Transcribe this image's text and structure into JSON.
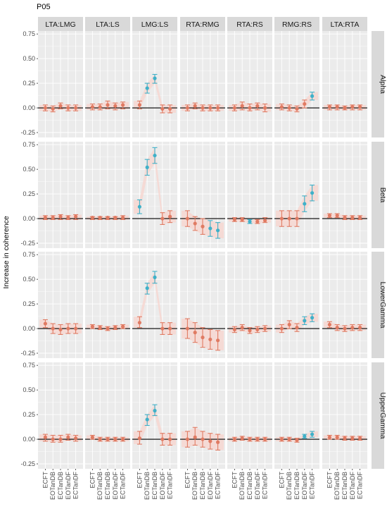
{
  "chart_data": {
    "type": "scatter",
    "title": "P05",
    "ylabel": "Increase in coherence",
    "xlabel": "",
    "ylim": [
      -0.3,
      0.78
    ],
    "y_ticks": [
      -0.25,
      0,
      0.25,
      0.5,
      0.75
    ],
    "y_tick_labels": [
      "-0.25",
      "0.00",
      "0.25",
      "0.50",
      "0.75"
    ],
    "column_facets": [
      "LTA:LMG",
      "LTA:LS",
      "LMG:LS",
      "RTA:RMG",
      "RTA:RS",
      "RMG:RS",
      "LTA:RTA"
    ],
    "row_facets": [
      "Alpha",
      "Beta",
      "LowerGamma",
      "UpperGamma"
    ],
    "categories": [
      "ECFT",
      "EOTanDB",
      "ECTanDB",
      "EOTanDF",
      "ECTanDF"
    ],
    "colors": {
      "significant": "#3fb1c9",
      "nonsignificant": "#e07b63",
      "band": "#f7d7d1",
      "panel": "#ebebeb",
      "strip": "#d9d9d9",
      "grid": "#ffffff"
    },
    "panels": {
      "Alpha": {
        "LTA:LMG": [
          [
            0.0,
            -0.03,
            0.03,
            0
          ],
          [
            -0.01,
            -0.04,
            0.02,
            0
          ],
          [
            0.02,
            -0.01,
            0.05,
            0
          ],
          [
            0.0,
            -0.03,
            0.03,
            0
          ],
          [
            0.0,
            -0.03,
            0.03,
            0
          ]
        ],
        "LTA:LS": [
          [
            0.01,
            -0.02,
            0.04,
            0
          ],
          [
            0.01,
            -0.02,
            0.04,
            0
          ],
          [
            0.03,
            -0.01,
            0.07,
            0
          ],
          [
            0.02,
            -0.02,
            0.05,
            0
          ],
          [
            0.03,
            -0.01,
            0.06,
            0
          ]
        ],
        "LMG:LS": [
          [
            0.03,
            -0.01,
            0.07,
            0
          ],
          [
            0.2,
            0.15,
            0.25,
            1
          ],
          [
            0.3,
            0.25,
            0.34,
            1
          ],
          [
            -0.01,
            -0.05,
            0.03,
            0
          ],
          [
            -0.01,
            -0.05,
            0.03,
            0
          ]
        ],
        "RTA:RMG": [
          [
            0.0,
            -0.03,
            0.03,
            0
          ],
          [
            0.02,
            -0.01,
            0.05,
            0
          ],
          [
            0.0,
            -0.03,
            0.03,
            0
          ],
          [
            0.0,
            -0.03,
            0.03,
            0
          ],
          [
            0.0,
            -0.03,
            0.03,
            0
          ]
        ],
        "RTA:RS": [
          [
            0.0,
            -0.03,
            0.03,
            0
          ],
          [
            0.02,
            -0.02,
            0.06,
            0
          ],
          [
            0.0,
            -0.03,
            0.04,
            0
          ],
          [
            0.02,
            -0.02,
            0.05,
            0
          ],
          [
            0.0,
            -0.04,
            0.04,
            0
          ]
        ],
        "RMG:RS": [
          [
            0.01,
            -0.02,
            0.04,
            0
          ],
          [
            0.0,
            -0.03,
            0.03,
            0
          ],
          [
            -0.01,
            -0.04,
            0.02,
            0
          ],
          [
            0.04,
            0.0,
            0.08,
            0
          ],
          [
            0.12,
            0.08,
            0.16,
            1
          ]
        ],
        "LTA:RTA": [
          [
            0.01,
            -0.02,
            0.03,
            0
          ],
          [
            0.01,
            -0.02,
            0.03,
            0
          ],
          [
            0.0,
            -0.02,
            0.02,
            0
          ],
          [
            0.01,
            -0.02,
            0.03,
            0
          ],
          [
            0.01,
            -0.02,
            0.03,
            0
          ]
        ]
      },
      "Beta": {
        "LTA:LMG": [
          [
            0.01,
            -0.01,
            0.03,
            0
          ],
          [
            0.01,
            -0.01,
            0.03,
            0
          ],
          [
            0.02,
            -0.01,
            0.04,
            0
          ],
          [
            0.01,
            -0.01,
            0.03,
            0
          ],
          [
            0.02,
            -0.01,
            0.04,
            0
          ]
        ],
        "LTA:LS": [
          [
            0.01,
            -0.01,
            0.02,
            0
          ],
          [
            0.01,
            -0.01,
            0.02,
            0
          ],
          [
            0.01,
            -0.01,
            0.02,
            0
          ],
          [
            0.01,
            -0.01,
            0.02,
            0
          ],
          [
            0.01,
            -0.01,
            0.03,
            0
          ]
        ],
        "LMG:LS": [
          [
            0.12,
            0.05,
            0.19,
            1
          ],
          [
            0.52,
            0.44,
            0.6,
            1
          ],
          [
            0.64,
            0.56,
            0.72,
            1
          ],
          [
            0.0,
            -0.06,
            0.06,
            0
          ],
          [
            0.02,
            -0.04,
            0.08,
            0
          ]
        ],
        "RTA:RMG": [
          [
            0.0,
            -0.08,
            0.08,
            0
          ],
          [
            -0.05,
            -0.12,
            0.02,
            0
          ],
          [
            -0.08,
            -0.16,
            0.0,
            0
          ],
          [
            -0.1,
            -0.18,
            -0.02,
            1
          ],
          [
            -0.12,
            -0.2,
            -0.04,
            1
          ]
        ],
        "RTA:RS": [
          [
            -0.01,
            -0.03,
            0.01,
            0
          ],
          [
            -0.01,
            -0.03,
            0.01,
            0
          ],
          [
            -0.03,
            -0.05,
            -0.01,
            1
          ],
          [
            -0.03,
            -0.05,
            -0.01,
            0
          ],
          [
            -0.02,
            -0.04,
            0.01,
            0
          ]
        ],
        "RMG:RS": [
          [
            0.0,
            -0.08,
            0.08,
            0
          ],
          [
            0.0,
            -0.08,
            0.08,
            0
          ],
          [
            0.0,
            -0.08,
            0.08,
            0
          ],
          [
            0.15,
            0.07,
            0.23,
            1
          ],
          [
            0.26,
            0.18,
            0.34,
            1
          ]
        ],
        "LTA:RTA": [
          [
            0.03,
            0.01,
            0.05,
            0
          ],
          [
            0.03,
            0.01,
            0.05,
            0
          ],
          [
            0.01,
            -0.01,
            0.03,
            0
          ],
          [
            0.01,
            -0.01,
            0.03,
            0
          ],
          [
            0.01,
            -0.01,
            0.03,
            0
          ]
        ]
      },
      "LowerGamma": {
        "LTA:LMG": [
          [
            0.05,
            0.01,
            0.09,
            0
          ],
          [
            0.0,
            -0.05,
            0.05,
            0
          ],
          [
            -0.01,
            -0.06,
            0.04,
            0
          ],
          [
            0.0,
            -0.05,
            0.05,
            0
          ],
          [
            0.0,
            -0.05,
            0.05,
            0
          ]
        ],
        "LTA:LS": [
          [
            0.02,
            0.0,
            0.04,
            0
          ],
          [
            0.01,
            -0.01,
            0.03,
            0
          ],
          [
            0.0,
            -0.02,
            0.02,
            0
          ],
          [
            0.01,
            -0.01,
            0.03,
            0
          ],
          [
            0.02,
            0.0,
            0.04,
            0
          ]
        ],
        "LMG:LS": [
          [
            0.06,
            0.01,
            0.12,
            0
          ],
          [
            0.41,
            0.35,
            0.46,
            1
          ],
          [
            0.52,
            0.46,
            0.58,
            1
          ],
          [
            0.0,
            -0.06,
            0.06,
            0
          ],
          [
            0.0,
            -0.06,
            0.06,
            0
          ]
        ],
        "RTA:RMG": [
          [
            0.0,
            -0.1,
            0.1,
            0
          ],
          [
            -0.04,
            -0.14,
            0.06,
            0
          ],
          [
            -0.09,
            -0.19,
            0.01,
            0
          ],
          [
            -0.11,
            -0.21,
            -0.01,
            0
          ],
          [
            -0.12,
            -0.22,
            -0.02,
            0
          ]
        ],
        "RTA:RS": [
          [
            -0.01,
            -0.04,
            0.02,
            0
          ],
          [
            0.01,
            -0.02,
            0.04,
            0
          ],
          [
            -0.02,
            -0.05,
            0.01,
            0
          ],
          [
            -0.01,
            -0.04,
            0.02,
            0
          ],
          [
            0.0,
            -0.03,
            0.03,
            0
          ]
        ],
        "RMG:RS": [
          [
            0.0,
            -0.04,
            0.04,
            0
          ],
          [
            0.04,
            0.0,
            0.08,
            0
          ],
          [
            0.01,
            -0.03,
            0.05,
            0
          ],
          [
            0.08,
            0.04,
            0.12,
            1
          ],
          [
            0.11,
            0.07,
            0.15,
            1
          ]
        ],
        "LTA:RTA": [
          [
            0.04,
            0.01,
            0.07,
            0
          ],
          [
            0.01,
            -0.02,
            0.04,
            0
          ],
          [
            0.0,
            -0.03,
            0.03,
            0
          ],
          [
            0.01,
            -0.02,
            0.04,
            0
          ],
          [
            0.01,
            -0.02,
            0.04,
            0
          ]
        ]
      },
      "UpperGamma": {
        "LTA:LMG": [
          [
            0.02,
            -0.02,
            0.05,
            0
          ],
          [
            0.0,
            -0.03,
            0.04,
            0
          ],
          [
            0.0,
            -0.03,
            0.04,
            0
          ],
          [
            0.02,
            -0.01,
            0.05,
            0
          ],
          [
            0.01,
            -0.02,
            0.04,
            0
          ]
        ],
        "LTA:LS": [
          [
            0.02,
            0.0,
            0.04,
            0
          ],
          [
            0.0,
            -0.02,
            0.02,
            0
          ],
          [
            0.0,
            -0.02,
            0.02,
            0
          ],
          [
            0.0,
            -0.02,
            0.02,
            0
          ],
          [
            0.0,
            -0.02,
            0.02,
            0
          ]
        ],
        "LMG:LS": [
          [
            0.01,
            -0.05,
            0.08,
            0
          ],
          [
            0.2,
            0.14,
            0.25,
            1
          ],
          [
            0.29,
            0.24,
            0.35,
            1
          ],
          [
            0.0,
            -0.06,
            0.06,
            0
          ],
          [
            0.0,
            -0.06,
            0.06,
            0
          ]
        ],
        "RTA:RMG": [
          [
            0.0,
            -0.08,
            0.08,
            0
          ],
          [
            0.02,
            -0.06,
            0.12,
            0
          ],
          [
            0.0,
            -0.08,
            0.08,
            0
          ],
          [
            -0.02,
            -0.1,
            0.06,
            0
          ],
          [
            -0.03,
            -0.11,
            0.05,
            0
          ]
        ],
        "RTA:RS": [
          [
            0.0,
            -0.02,
            0.02,
            0
          ],
          [
            0.01,
            -0.01,
            0.03,
            0
          ],
          [
            0.0,
            -0.02,
            0.02,
            0
          ],
          [
            0.0,
            -0.02,
            0.02,
            0
          ],
          [
            0.0,
            -0.02,
            0.02,
            0
          ]
        ],
        "RMG:RS": [
          [
            0.0,
            -0.02,
            0.02,
            0
          ],
          [
            0.0,
            -0.02,
            0.02,
            0
          ],
          [
            -0.01,
            -0.03,
            0.01,
            0
          ],
          [
            0.03,
            0.01,
            0.05,
            1
          ],
          [
            0.05,
            0.02,
            0.08,
            1
          ]
        ],
        "LTA:RTA": [
          [
            0.02,
            0.0,
            0.04,
            0
          ],
          [
            0.02,
            0.0,
            0.04,
            0
          ],
          [
            0.01,
            -0.01,
            0.03,
            0
          ],
          [
            0.01,
            -0.01,
            0.03,
            0
          ],
          [
            0.01,
            -0.01,
            0.03,
            0
          ]
        ]
      }
    }
  }
}
